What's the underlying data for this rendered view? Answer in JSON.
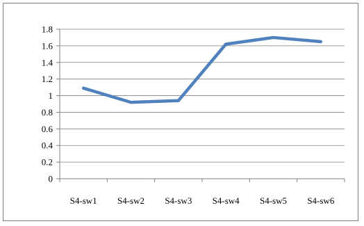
{
  "chart_data": {
    "type": "line",
    "title": "",
    "xlabel": "",
    "ylabel": "",
    "categories": [
      "S4-sw1",
      "S4-sw2",
      "S4-sw3",
      "S4-sw4",
      "S4-sw5",
      "S4-sw6"
    ],
    "series": [
      {
        "values": [
          1.09,
          0.92,
          0.94,
          1.62,
          1.7,
          1.65
        ],
        "color": "#4f81bd"
      }
    ],
    "ylim": [
      0,
      1.8
    ],
    "yticks": [
      "0",
      "0.2",
      "0.4",
      "0.6",
      "0.8",
      "1",
      "1.2",
      "1.4",
      "1.6",
      "1.8"
    ],
    "grid": true,
    "legend": "none"
  }
}
